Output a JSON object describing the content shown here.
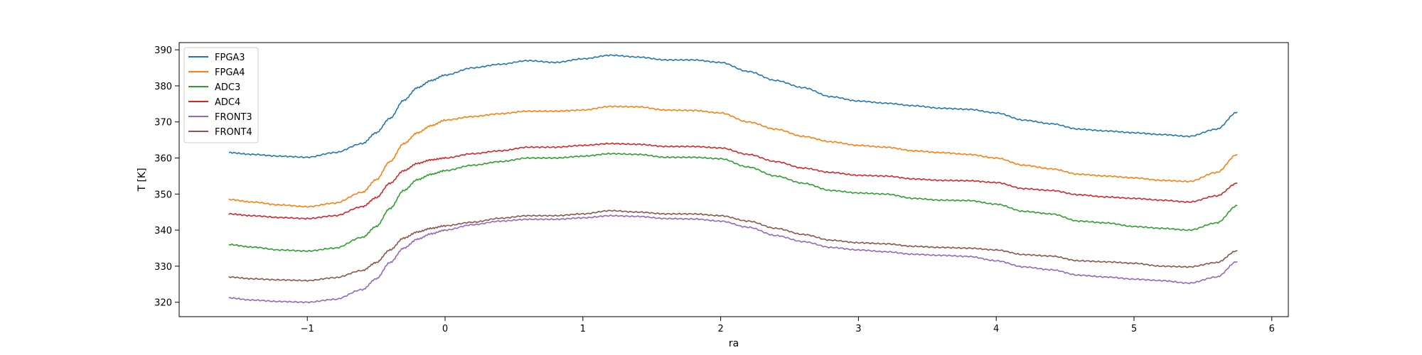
{
  "chart_data": {
    "type": "line",
    "title": "",
    "xlabel": "ra",
    "ylabel": "T [K]",
    "xlim": [
      -1.93,
      6.12
    ],
    "ylim": [
      316,
      392
    ],
    "xticks": [
      -1,
      0,
      1,
      2,
      3,
      4,
      5,
      6
    ],
    "xtick_labels": [
      "−1",
      "0",
      "1",
      "2",
      "3",
      "4",
      "5",
      "6"
    ],
    "yticks": [
      320,
      330,
      340,
      350,
      360,
      370,
      380,
      390
    ],
    "ytick_labels": [
      "320",
      "330",
      "340",
      "350",
      "360",
      "370",
      "380",
      "390"
    ],
    "grid": false,
    "legend_position": "upper-left",
    "x": [
      -1.57,
      -1.4,
      -1.2,
      -1.0,
      -0.8,
      -0.6,
      -0.5,
      -0.4,
      -0.3,
      -0.2,
      -0.1,
      0.0,
      0.2,
      0.4,
      0.6,
      0.8,
      1.0,
      1.2,
      1.4,
      1.6,
      1.8,
      2.0,
      2.2,
      2.4,
      2.6,
      2.8,
      3.0,
      3.2,
      3.4,
      3.6,
      3.8,
      4.0,
      4.2,
      4.4,
      4.6,
      4.8,
      5.0,
      5.2,
      5.4,
      5.6,
      5.75
    ],
    "series": [
      {
        "name": "FPGA3",
        "color": "#1f77b4",
        "values": [
          361.5,
          361,
          360.5,
          360.2,
          361.5,
          364,
          367,
          371,
          376,
          379.5,
          381.5,
          383,
          385,
          386,
          387,
          386.5,
          387.5,
          388.5,
          388,
          387.2,
          387.2,
          386.5,
          384,
          381.5,
          379.5,
          377,
          375.8,
          375.2,
          374.5,
          373.8,
          373.5,
          372.5,
          370.5,
          369.5,
          368,
          367.5,
          367,
          366.5,
          366,
          368,
          372.7
        ]
      },
      {
        "name": "FPGA4",
        "color": "#ff7f0e",
        "values": [
          348.5,
          347.8,
          347,
          346.5,
          347.5,
          350.5,
          354,
          359,
          364,
          367,
          369,
          370.5,
          371.5,
          372.3,
          373,
          373,
          373.3,
          374.3,
          374.2,
          373.3,
          373.2,
          372.5,
          370,
          368,
          366,
          364.5,
          363.5,
          363,
          362,
          361.5,
          361,
          360,
          358,
          357,
          355.5,
          355,
          354.5,
          353.8,
          353.5,
          356,
          361
        ]
      },
      {
        "name": "ADC3",
        "color": "#2ca02c",
        "values": [
          336,
          335.3,
          334.5,
          334.2,
          335,
          338,
          341,
          346,
          351,
          354,
          355.5,
          356.5,
          358,
          359,
          360,
          360,
          360.5,
          361.2,
          361,
          360.2,
          360.2,
          359.8,
          357.5,
          355,
          353,
          351,
          350.3,
          350,
          348.8,
          348.3,
          348.2,
          347.2,
          345.2,
          344.5,
          342.5,
          342,
          341,
          340.5,
          340,
          342,
          346.8
        ]
      },
      {
        "name": "ADC4",
        "color": "#d62728",
        "values": [
          344.5,
          344,
          343.5,
          343.2,
          344,
          346.5,
          349,
          353,
          356.5,
          358.5,
          359.5,
          360,
          361.2,
          362,
          363,
          363,
          363.5,
          364,
          363.8,
          363.2,
          363.2,
          362.8,
          361,
          359,
          357.2,
          356,
          355.2,
          355,
          354.2,
          353.8,
          353.7,
          353.2,
          351.5,
          351,
          349.8,
          349.2,
          348.8,
          348.3,
          347.8,
          349.5,
          353
        ]
      },
      {
        "name": "FRONT3",
        "color": "#9467bd",
        "values": [
          321.2,
          320.6,
          320.2,
          320,
          320.8,
          323.5,
          326.5,
          331,
          335,
          337.5,
          339,
          340,
          341.5,
          342.5,
          343,
          343,
          343.4,
          344,
          343.8,
          343.2,
          343.1,
          342.5,
          340.8,
          338.5,
          336.8,
          335.2,
          334.5,
          334,
          333.3,
          333,
          332.7,
          331.5,
          329.8,
          329,
          327.5,
          327,
          326.4,
          326,
          325.3,
          327,
          331.3
        ]
      },
      {
        "name": "FRONT4",
        "color": "#8c564b",
        "values": [
          327,
          326.5,
          326.2,
          326,
          326.8,
          328.8,
          331,
          334.5,
          337.8,
          339.5,
          340.5,
          341.2,
          342.2,
          343.3,
          344,
          344,
          344.5,
          345.4,
          345,
          344.5,
          344.5,
          344,
          342.5,
          340.5,
          338.8,
          337.2,
          336.5,
          336.2,
          335.5,
          335.2,
          335,
          334.5,
          333.2,
          332.8,
          331.5,
          331.2,
          330.8,
          330,
          329.8,
          331,
          334.3
        ]
      }
    ]
  }
}
